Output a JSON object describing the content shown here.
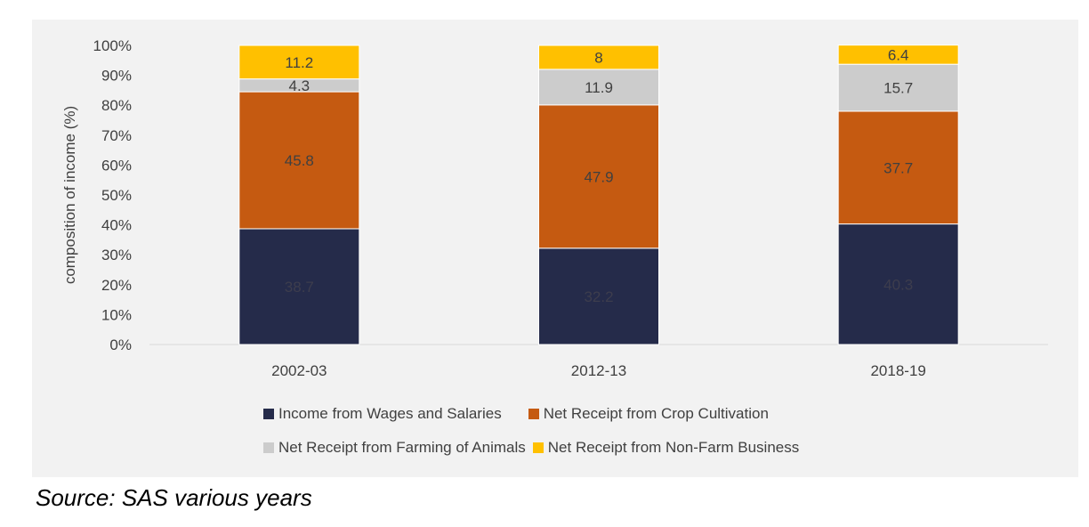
{
  "chart_data": {
    "type": "bar",
    "stacked": true,
    "categories": [
      "2002-03",
      "2012-13",
      "2018-19"
    ],
    "series": [
      {
        "name": "Income from Wages and Salaries",
        "values": [
          38.7,
          32.2,
          40.3
        ],
        "labels": [
          "38.7",
          "32.2",
          "40.3"
        ],
        "color": "#252b4a",
        "label_color": "#3d3d4d"
      },
      {
        "name": "Net Receipt from Crop Cultivation",
        "values": [
          45.8,
          47.9,
          37.7
        ],
        "labels": [
          "45.8",
          "47.9",
          "37.7"
        ],
        "color": "#c55a11",
        "label_color": "#404040"
      },
      {
        "name": "Net Receipt from Farming of Animals",
        "values": [
          4.3,
          11.9,
          15.7
        ],
        "labels": [
          "4.3",
          "11.9",
          "15.7"
        ],
        "color": "#cccccc",
        "label_color": "#404040"
      },
      {
        "name": "Net Receipt from Non-Farm Business",
        "values": [
          11.2,
          8,
          6.4
        ],
        "labels": [
          "11.2",
          "8",
          "6.4"
        ],
        "color": "#ffc000",
        "label_color": "#404040"
      }
    ],
    "ylabel": "composition of income (%)",
    "xlabel": "",
    "yticks": [
      "0%",
      "10%",
      "20%",
      "30%",
      "40%",
      "50%",
      "60%",
      "70%",
      "80%",
      "90%",
      "100%"
    ],
    "ylim": [
      0,
      100
    ],
    "grid": false,
    "legend_position": "bottom"
  },
  "source": "Source: SAS various years"
}
